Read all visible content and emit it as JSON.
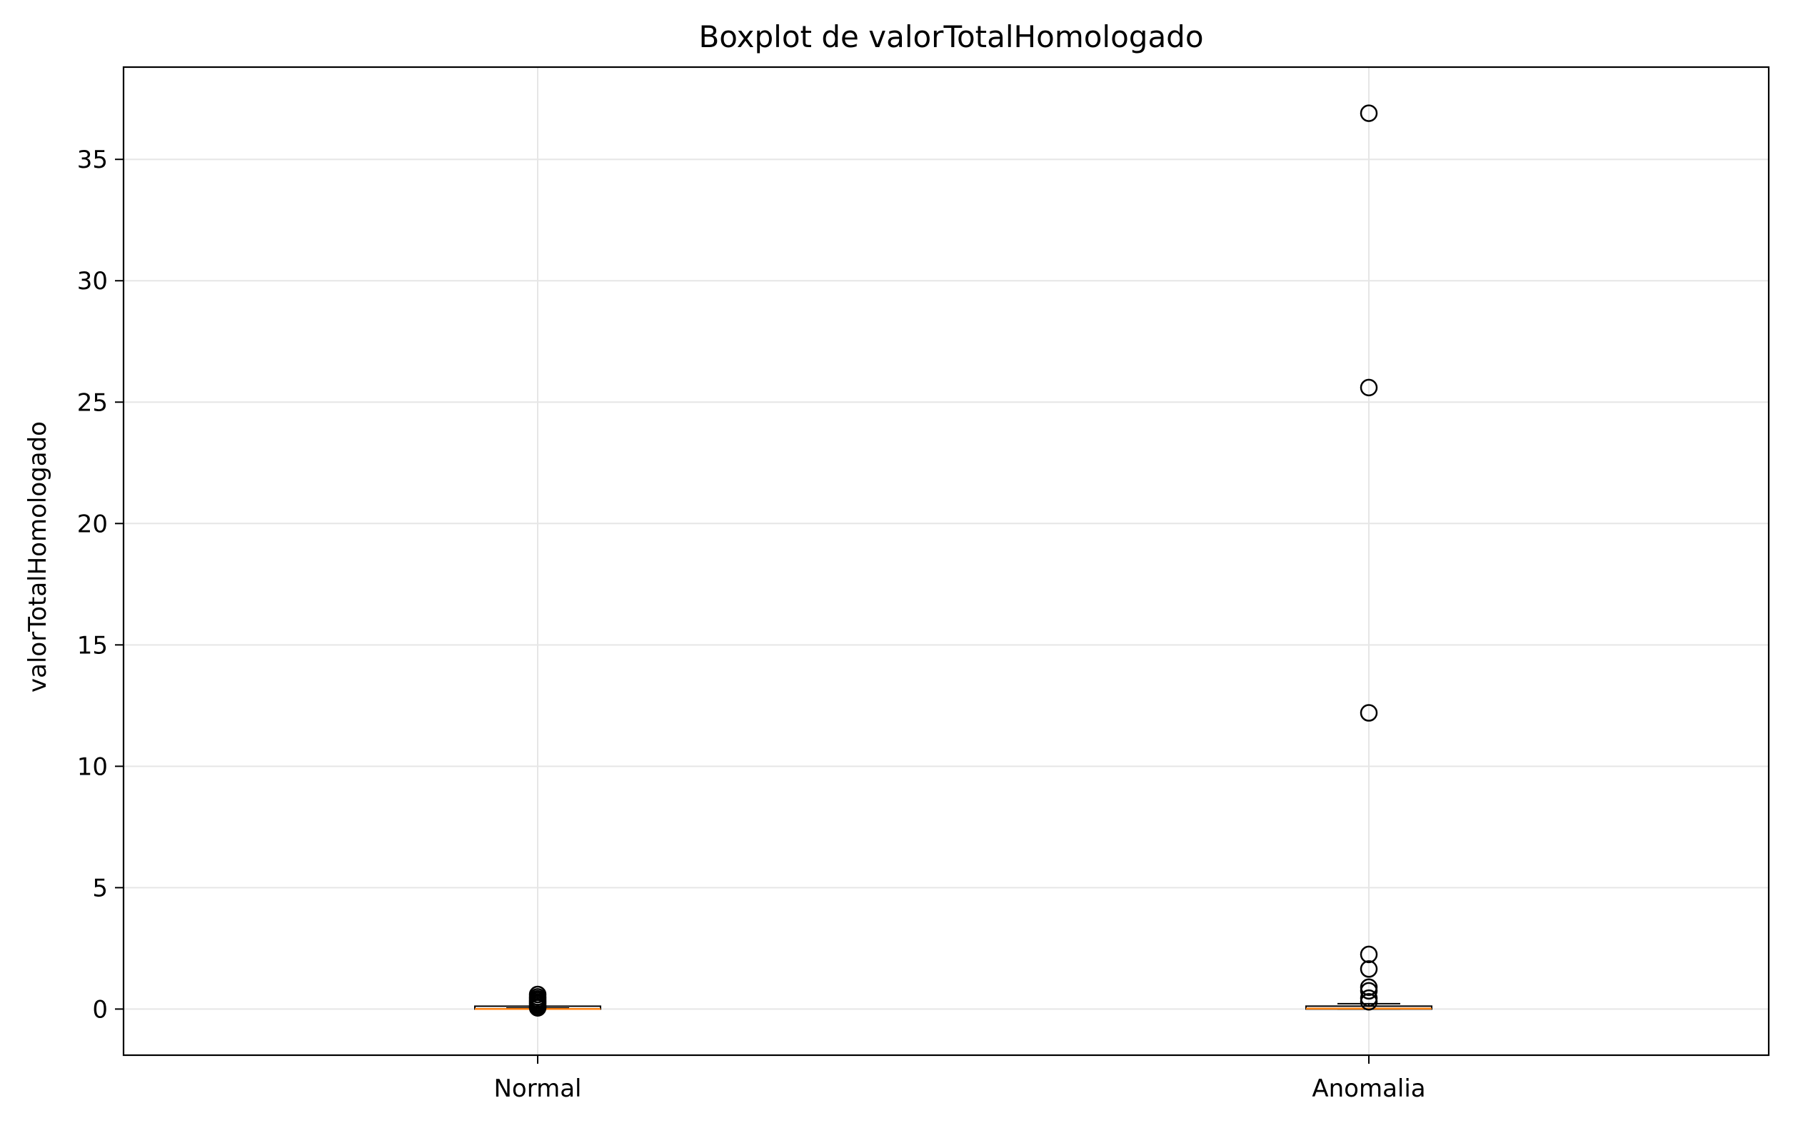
{
  "chart_data": {
    "type": "boxplot",
    "title": "Boxplot de valorTotalHomologado",
    "xlabel": "",
    "ylabel": "valorTotalHomologado",
    "ylim": [
      -1.9,
      38.8
    ],
    "y_ticks": [
      0,
      5,
      10,
      15,
      20,
      25,
      30,
      35
    ],
    "grid": true,
    "categories": [
      "Normal",
      "Anomalia"
    ],
    "colors": {
      "box_edge": "#000000",
      "median": "#ff7f0e",
      "grid": "#e6e6e6",
      "flier": "#000000"
    },
    "boxes": [
      {
        "name": "Normal",
        "whisker_low": 0.0,
        "q1": 0.0,
        "median": 0.005,
        "q3": 0.02,
        "whisker_high": 0.04,
        "fliers": [
          0.6,
          0.5,
          0.42,
          0.35,
          0.28,
          0.22,
          0.15,
          0.08,
          0.05
        ]
      },
      {
        "name": "Anomalia",
        "whisker_low": 0.0,
        "q1": 0.0,
        "median": 0.02,
        "q3": 0.12,
        "whisker_high": 0.22,
        "fliers": [
          36.9,
          25.6,
          12.2,
          2.25,
          1.65,
          0.9,
          0.75,
          0.45,
          0.3
        ]
      }
    ]
  }
}
